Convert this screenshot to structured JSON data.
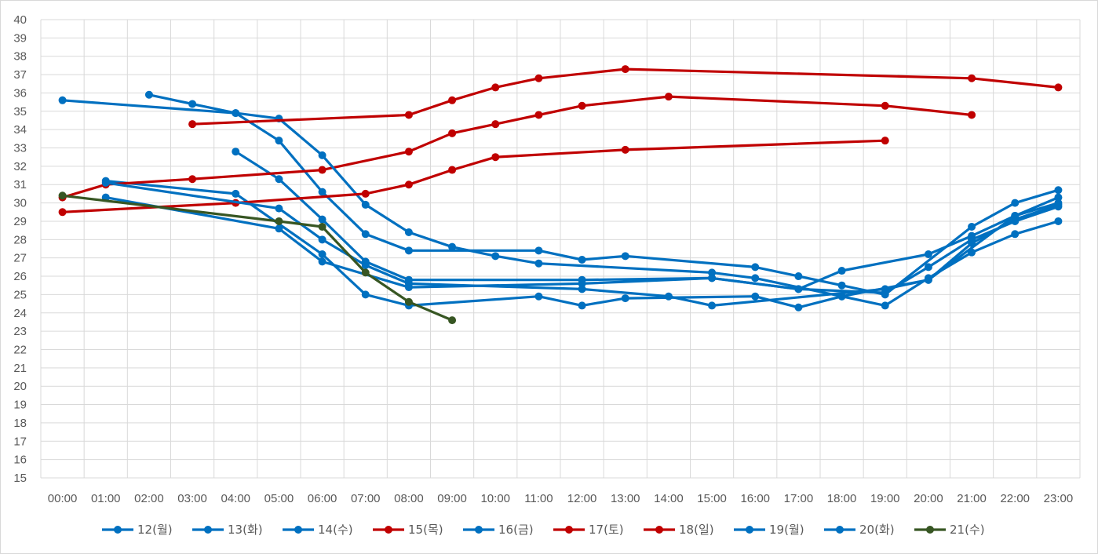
{
  "chart_data": {
    "type": "line",
    "title": "",
    "xlabel": "",
    "ylabel": "",
    "x": [
      "00:00",
      "01:00",
      "02:00",
      "03:00",
      "04:00",
      "05:00",
      "06:00",
      "07:00",
      "08:00",
      "09:00",
      "10:00",
      "11:00",
      "12:00",
      "13:00",
      "14:00",
      "15:00",
      "16:00",
      "17:00",
      "18:00",
      "19:00",
      "20:00",
      "21:00",
      "22:00",
      "23:00"
    ],
    "ylim": [
      15,
      40
    ],
    "ytick_step": 1,
    "grid": true,
    "legend_position": "bottom",
    "series": [
      {
        "name": "12(월)",
        "color": "#0070c0",
        "points": [
          [
            1,
            31.2
          ],
          [
            4,
            30.5
          ],
          [
            6,
            27.2
          ],
          [
            7,
            25
          ],
          [
            8,
            24.4
          ],
          [
            11,
            24.9
          ],
          [
            12,
            24.4
          ],
          [
            13,
            24.8
          ],
          [
            16,
            24.9
          ],
          [
            17,
            24.3
          ],
          [
            18,
            24.9
          ],
          [
            20,
            25.8
          ],
          [
            22,
            29.3
          ],
          [
            23,
            30.3
          ]
        ]
      },
      {
        "name": "13(화)",
        "color": "#0070c0",
        "points": [
          [
            2,
            35.9
          ],
          [
            3,
            35.4
          ],
          [
            4,
            34.9
          ],
          [
            5,
            33.4
          ],
          [
            6,
            30.6
          ],
          [
            7,
            28.3
          ],
          [
            8,
            27.4
          ],
          [
            11,
            27.4
          ],
          [
            12,
            26.9
          ],
          [
            13,
            27.1
          ],
          [
            16,
            26.5
          ],
          [
            17,
            26
          ],
          [
            18,
            25.5
          ],
          [
            19,
            25
          ],
          [
            21,
            28.7
          ],
          [
            22,
            30
          ],
          [
            23,
            30.7
          ]
        ]
      },
      {
        "name": "14(수)",
        "color": "#0070c0",
        "points": [
          [
            4,
            32.8
          ],
          [
            5,
            31.3
          ],
          [
            6,
            29.1
          ],
          [
            7,
            26.8
          ],
          [
            8,
            25.8
          ],
          [
            12,
            25.8
          ],
          [
            15,
            25.9
          ],
          [
            17,
            25.3
          ],
          [
            18,
            26.3
          ],
          [
            20,
            27.2
          ],
          [
            21,
            28.2
          ],
          [
            22,
            29.3
          ],
          [
            23,
            30
          ]
        ]
      },
      {
        "name": "15(목)",
        "color": "#c00000",
        "points": [
          [
            0,
            30.3
          ],
          [
            1,
            31
          ],
          [
            3,
            31.3
          ],
          [
            6,
            31.8
          ],
          [
            8,
            32.8
          ],
          [
            9,
            33.8
          ],
          [
            10,
            34.3
          ],
          [
            11,
            34.8
          ],
          [
            12,
            35.3
          ],
          [
            14,
            35.8
          ],
          [
            19,
            35.3
          ],
          [
            21,
            34.8
          ]
        ]
      },
      {
        "name": "16(금)",
        "color": "#0070c0",
        "points": [
          [
            0,
            35.6
          ],
          [
            4,
            34.9
          ],
          [
            5,
            34.6
          ],
          [
            6,
            32.6
          ],
          [
            7,
            29.9
          ],
          [
            8,
            28.4
          ],
          [
            9,
            27.6
          ],
          [
            10,
            27.1
          ],
          [
            11,
            26.7
          ],
          [
            15,
            26.2
          ],
          [
            16,
            25.9
          ],
          [
            18,
            24.9
          ],
          [
            19,
            24.4
          ],
          [
            20,
            25.9
          ],
          [
            21,
            27.3
          ],
          [
            22,
            28.3
          ],
          [
            23,
            29
          ]
        ]
      },
      {
        "name": "17(토)",
        "color": "#c00000",
        "points": [
          [
            3,
            34.3
          ],
          [
            8,
            34.8
          ],
          [
            9,
            35.6
          ],
          [
            10,
            36.3
          ],
          [
            11,
            36.8
          ],
          [
            13,
            37.3
          ],
          [
            21,
            36.8
          ],
          [
            23,
            36.3
          ]
        ]
      },
      {
        "name": "18(일)",
        "color": "#c00000",
        "points": [
          [
            0,
            29.5
          ],
          [
            4,
            30
          ],
          [
            7,
            30.5
          ],
          [
            8,
            31
          ],
          [
            9,
            31.8
          ],
          [
            10,
            32.5
          ],
          [
            13,
            32.9
          ],
          [
            19,
            33.4
          ]
        ]
      },
      {
        "name": "19(월)",
        "color": "#0070c0",
        "points": [
          [
            1,
            30.3
          ],
          [
            5,
            28.6
          ],
          [
            6,
            26.8
          ],
          [
            8,
            25.4
          ],
          [
            12,
            25.6
          ],
          [
            15,
            25.9
          ],
          [
            17,
            25.3
          ],
          [
            19,
            25.1
          ],
          [
            20,
            26.5
          ],
          [
            21,
            28
          ],
          [
            22,
            29
          ],
          [
            23,
            29.8
          ]
        ]
      },
      {
        "name": "20(화)",
        "color": "#0070c0",
        "points": [
          [
            1,
            31.1
          ],
          [
            5,
            29.7
          ],
          [
            6,
            28
          ],
          [
            7,
            26.6
          ],
          [
            8,
            25.6
          ],
          [
            12,
            25.3
          ],
          [
            14,
            24.9
          ],
          [
            15,
            24.4
          ],
          [
            19,
            25.3
          ],
          [
            20,
            25.8
          ],
          [
            21,
            27.8
          ],
          [
            22,
            29.1
          ],
          [
            23,
            29.9
          ]
        ]
      },
      {
        "name": "21(수)",
        "color": "#375623",
        "points": [
          [
            0,
            30.4
          ],
          [
            5,
            29
          ],
          [
            6,
            28.7
          ],
          [
            7,
            26.2
          ],
          [
            8,
            24.6
          ],
          [
            9,
            23.6
          ]
        ]
      }
    ]
  }
}
